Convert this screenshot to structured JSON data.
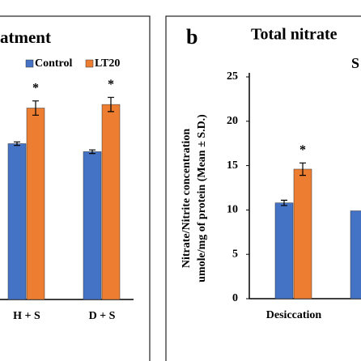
{
  "chart_data": [
    {
      "type": "bar",
      "title": "atment",
      "categories": [
        "H + S",
        "D + S"
      ],
      "series": [
        {
          "name": "Control",
          "color": "#4472c4",
          "values": [
            17.5,
            16.6
          ],
          "errors": [
            0.2,
            0.2
          ]
        },
        {
          "name": "LT20",
          "color": "#ed7d31",
          "values": [
            21.5,
            21.9
          ],
          "errors": [
            0.8,
            0.8
          ],
          "significance": [
            "*",
            "*"
          ]
        }
      ],
      "ylim": [
        0,
        25
      ],
      "legend": "top-right"
    },
    {
      "type": "bar",
      "panel": "b",
      "title": "Total nitrate",
      "subtitle": "S",
      "ylabel": [
        "Nitrate/Nitrite  concentration",
        "umole/mg of protein (Mean ± S.D.)"
      ],
      "categories": [
        "Desiccation",
        null
      ],
      "series": [
        {
          "name": "Control",
          "color": "#4472c4",
          "values": [
            10.8,
            9.9
          ],
          "errors": [
            0.3,
            null
          ]
        },
        {
          "name": "LT20",
          "color": "#ed7d31",
          "values": [
            14.6,
            null
          ],
          "errors": [
            0.7,
            null
          ],
          "significance": [
            "*",
            null
          ]
        }
      ],
      "ylim": [
        0,
        25
      ],
      "yticks": [
        0,
        5,
        10,
        15,
        20,
        25
      ]
    }
  ]
}
